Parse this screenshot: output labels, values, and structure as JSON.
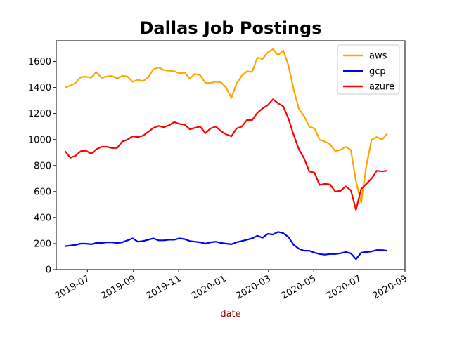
{
  "chart_data": {
    "type": "line",
    "title": "Dallas Job Postings",
    "xlabel": "date",
    "ylabel": "",
    "ylim": [
      0,
      1760
    ],
    "xlim": [
      "2019-05-20",
      "2020-09-01"
    ],
    "yticks": [
      0,
      200,
      400,
      600,
      800,
      1000,
      1200,
      1400,
      1600
    ],
    "xticks": [
      "2019-07",
      "2019-09",
      "2019-11",
      "2020-01",
      "2020-03",
      "2020-05",
      "2020-07",
      "2020-09"
    ],
    "grid": false,
    "legend_position": "top-right",
    "x": [
      "2019-06-01",
      "2019-06-08",
      "2019-06-15",
      "2019-06-22",
      "2019-06-29",
      "2019-07-06",
      "2019-07-13",
      "2019-07-20",
      "2019-07-27",
      "2019-08-03",
      "2019-08-10",
      "2019-08-17",
      "2019-08-24",
      "2019-08-31",
      "2019-09-07",
      "2019-09-14",
      "2019-09-21",
      "2019-09-28",
      "2019-10-05",
      "2019-10-12",
      "2019-10-19",
      "2019-10-26",
      "2019-11-02",
      "2019-11-09",
      "2019-11-16",
      "2019-11-23",
      "2019-11-30",
      "2019-12-07",
      "2019-12-14",
      "2019-12-21",
      "2019-12-28",
      "2020-01-04",
      "2020-01-11",
      "2020-01-18",
      "2020-01-25",
      "2020-02-01",
      "2020-02-08",
      "2020-02-15",
      "2020-02-22",
      "2020-02-29",
      "2020-03-07",
      "2020-03-14",
      "2020-03-21",
      "2020-03-28",
      "2020-04-04",
      "2020-04-11",
      "2020-04-18",
      "2020-04-25",
      "2020-05-02",
      "2020-05-09",
      "2020-05-16",
      "2020-05-23",
      "2020-05-30",
      "2020-06-06",
      "2020-06-13",
      "2020-06-20",
      "2020-06-27",
      "2020-07-04",
      "2020-07-11",
      "2020-07-18",
      "2020-07-25",
      "2020-08-01",
      "2020-08-08"
    ],
    "series": [
      {
        "name": "aws",
        "color": "#ffa500",
        "values": [
          1400,
          1415,
          1435,
          1480,
          1485,
          1475,
          1520,
          1475,
          1485,
          1490,
          1470,
          1490,
          1485,
          1445,
          1460,
          1450,
          1480,
          1540,
          1555,
          1535,
          1530,
          1525,
          1510,
          1515,
          1470,
          1505,
          1495,
          1435,
          1435,
          1445,
          1440,
          1400,
          1320,
          1430,
          1490,
          1525,
          1520,
          1630,
          1620,
          1670,
          1695,
          1650,
          1685,
          1570,
          1385,
          1235,
          1180,
          1100,
          1085,
          1000,
          985,
          965,
          910,
          920,
          945,
          920,
          680,
          515,
          800,
          1000,
          1020,
          1000,
          1045
        ]
      },
      {
        "name": "gcp",
        "color": "#0000ff",
        "values": [
          180,
          185,
          190,
          200,
          200,
          195,
          205,
          205,
          210,
          210,
          205,
          210,
          225,
          240,
          215,
          220,
          230,
          240,
          225,
          225,
          230,
          230,
          240,
          235,
          220,
          215,
          210,
          200,
          210,
          215,
          205,
          200,
          195,
          210,
          220,
          230,
          240,
          260,
          245,
          275,
          270,
          290,
          280,
          250,
          190,
          160,
          145,
          145,
          130,
          120,
          115,
          120,
          120,
          125,
          135,
          125,
          80,
          130,
          135,
          140,
          150,
          150,
          145
        ]
      },
      {
        "name": "azure",
        "color": "#ff0000",
        "values": [
          910,
          860,
          875,
          910,
          915,
          890,
          925,
          945,
          945,
          935,
          935,
          985,
          1000,
          1025,
          1020,
          1030,
          1060,
          1090,
          1105,
          1095,
          1110,
          1135,
          1120,
          1115,
          1080,
          1090,
          1100,
          1050,
          1085,
          1100,
          1065,
          1040,
          1025,
          1085,
          1100,
          1150,
          1150,
          1205,
          1240,
          1265,
          1310,
          1280,
          1255,
          1160,
          1035,
          925,
          855,
          755,
          745,
          650,
          660,
          655,
          600,
          605,
          640,
          610,
          460,
          620,
          660,
          700,
          760,
          755,
          760
        ]
      }
    ]
  }
}
